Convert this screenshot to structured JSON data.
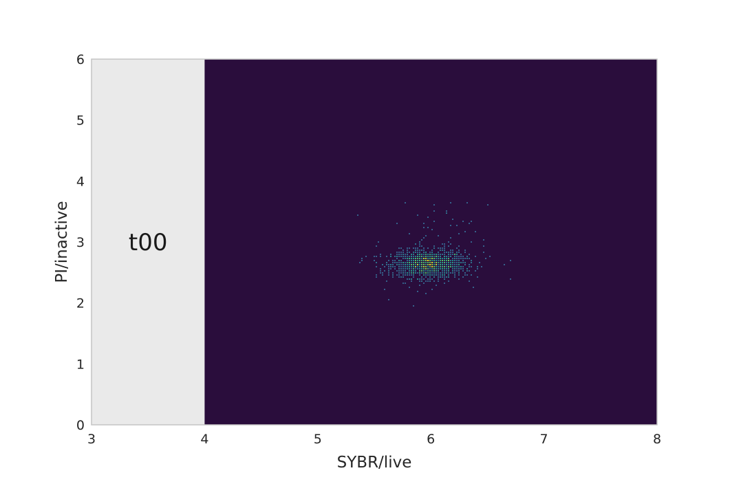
{
  "chart_data": {
    "type": "heatmap",
    "title": "",
    "xlabel": "SYBR/live",
    "ylabel": "PI/inactive",
    "xlim": [
      3,
      8
    ],
    "ylim": [
      0,
      6
    ],
    "xticks": [
      "3",
      "4",
      "5",
      "6",
      "7",
      "8"
    ],
    "yticks": [
      "0",
      "1",
      "2",
      "3",
      "4",
      "5",
      "6"
    ],
    "grid": false,
    "legend": "none",
    "annotation": {
      "text": "t00",
      "x": 3.5,
      "y": 3.0
    },
    "heatmap_extent": {
      "x": [
        4,
        8
      ],
      "y": [
        0,
        6
      ]
    },
    "colormap": "viridis",
    "background_color": "#eaeaea",
    "low_color": "#2a0d3c",
    "cluster": {
      "main": {
        "cx": 5.98,
        "cy": 2.63,
        "sx": 0.16,
        "sy": 0.11,
        "count": 1500
      },
      "halo": {
        "cx": 6.0,
        "cy": 2.8,
        "sx": 0.25,
        "sy": 0.4,
        "count": 120
      }
    }
  }
}
